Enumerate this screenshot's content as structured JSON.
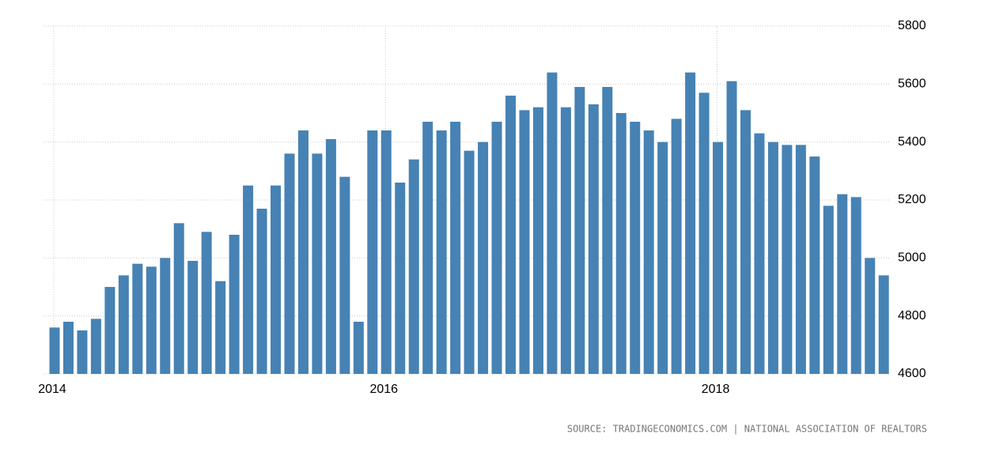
{
  "chart_data": {
    "type": "bar",
    "categories": [
      "2014",
      null,
      null,
      null,
      null,
      null,
      null,
      null,
      null,
      null,
      null,
      null,
      null,
      null,
      null,
      null,
      null,
      null,
      null,
      null,
      null,
      null,
      null,
      null,
      "2016",
      null,
      null,
      null,
      null,
      null,
      null,
      null,
      null,
      null,
      null,
      null,
      null,
      null,
      null,
      null,
      null,
      null,
      null,
      null,
      null,
      null,
      null,
      null,
      "2018",
      null,
      null,
      null,
      null,
      null,
      null,
      null,
      null,
      null,
      null,
      null,
      null
    ],
    "values": [
      4760,
      4780,
      4750,
      4790,
      4900,
      4940,
      4980,
      4970,
      5000,
      5120,
      4990,
      5090,
      4920,
      5080,
      5250,
      5170,
      5250,
      5360,
      5440,
      5360,
      5410,
      5280,
      4780,
      5440,
      5440,
      5260,
      5340,
      5470,
      5440,
      5470,
      5370,
      5400,
      5470,
      5560,
      5510,
      5520,
      5640,
      5520,
      5590,
      5530,
      5590,
      5500,
      5470,
      5440,
      5400,
      5480,
      5640,
      5570,
      5400,
      5610,
      5510,
      5430,
      5400,
      5390,
      5390,
      5350,
      5180,
      5220,
      5210,
      5000,
      4940
    ],
    "color": "#4682b4",
    "ylim": [
      4600,
      5800
    ],
    "yticks": [
      4600,
      4800,
      5000,
      5200,
      5400,
      5600,
      5800
    ],
    "grid": true,
    "source": "SOURCE: TRADINGECONOMICS.COM | NATIONAL ASSOCIATION OF REALTORS"
  }
}
